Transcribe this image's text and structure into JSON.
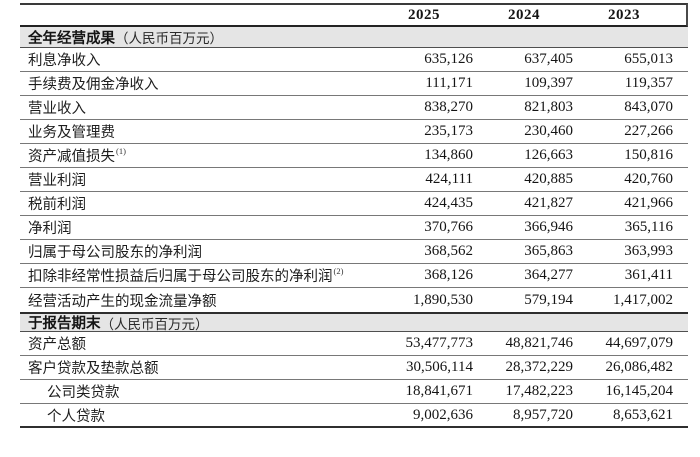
{
  "colors": {
    "section_header_bg": "#e5e5e5",
    "rule_thick": "#2e2e2e",
    "rule_thin": "#787878",
    "text": "#1e1e1e"
  },
  "table": {
    "years": [
      "2025",
      "2024",
      "2023"
    ],
    "sections": [
      {
        "title": "全年经营成果",
        "unit": "（人民币百万元）",
        "rows": [
          {
            "label": "利息净收入",
            "sup": "",
            "indent": false,
            "values": [
              "635,126",
              "637,405",
              "655,013"
            ]
          },
          {
            "label": "手续费及佣金净收入",
            "sup": "",
            "indent": false,
            "values": [
              "111,171",
              "109,397",
              "119,357"
            ]
          },
          {
            "label": "营业收入",
            "sup": "",
            "indent": false,
            "values": [
              "838,270",
              "821,803",
              "843,070"
            ]
          },
          {
            "label": "业务及管理费",
            "sup": "",
            "indent": false,
            "values": [
              "235,173",
              "230,460",
              "227,266"
            ]
          },
          {
            "label": "资产减值损失",
            "sup": "(1)",
            "indent": false,
            "values": [
              "134,860",
              "126,663",
              "150,816"
            ]
          },
          {
            "label": "营业利润",
            "sup": "",
            "indent": false,
            "values": [
              "424,111",
              "420,885",
              "420,760"
            ]
          },
          {
            "label": "税前利润",
            "sup": "",
            "indent": false,
            "values": [
              "424,435",
              "421,827",
              "421,966"
            ]
          },
          {
            "label": "净利润",
            "sup": "",
            "indent": false,
            "values": [
              "370,766",
              "366,946",
              "365,116"
            ]
          },
          {
            "label": "归属于母公司股东的净利润",
            "sup": "",
            "indent": false,
            "values": [
              "368,562",
              "365,863",
              "363,993"
            ]
          },
          {
            "label": "扣除非经常性损益后归属于母公司股东的净利润",
            "sup": "(2)",
            "indent": false,
            "values": [
              "368,126",
              "364,277",
              "361,411"
            ]
          },
          {
            "label": "经营活动产生的现金流量净额",
            "sup": "",
            "indent": false,
            "values": [
              "1,890,530",
              "579,194",
              "1,417,002"
            ]
          }
        ]
      },
      {
        "title": "于报告期末",
        "unit": "（人民币百万元）",
        "rows": [
          {
            "label": "资产总额",
            "sup": "",
            "indent": false,
            "values": [
              "53,477,773",
              "48,821,746",
              "44,697,079"
            ]
          },
          {
            "label": "客户贷款及垫款总额",
            "sup": "",
            "indent": false,
            "values": [
              "30,506,114",
              "28,372,229",
              "26,086,482"
            ]
          },
          {
            "label": "公司类贷款",
            "sup": "",
            "indent": true,
            "values": [
              "18,841,671",
              "17,482,223",
              "16,145,204"
            ]
          },
          {
            "label": "个人贷款",
            "sup": "",
            "indent": true,
            "values": [
              "9,002,636",
              "8,957,720",
              "8,653,621"
            ]
          }
        ]
      }
    ]
  }
}
